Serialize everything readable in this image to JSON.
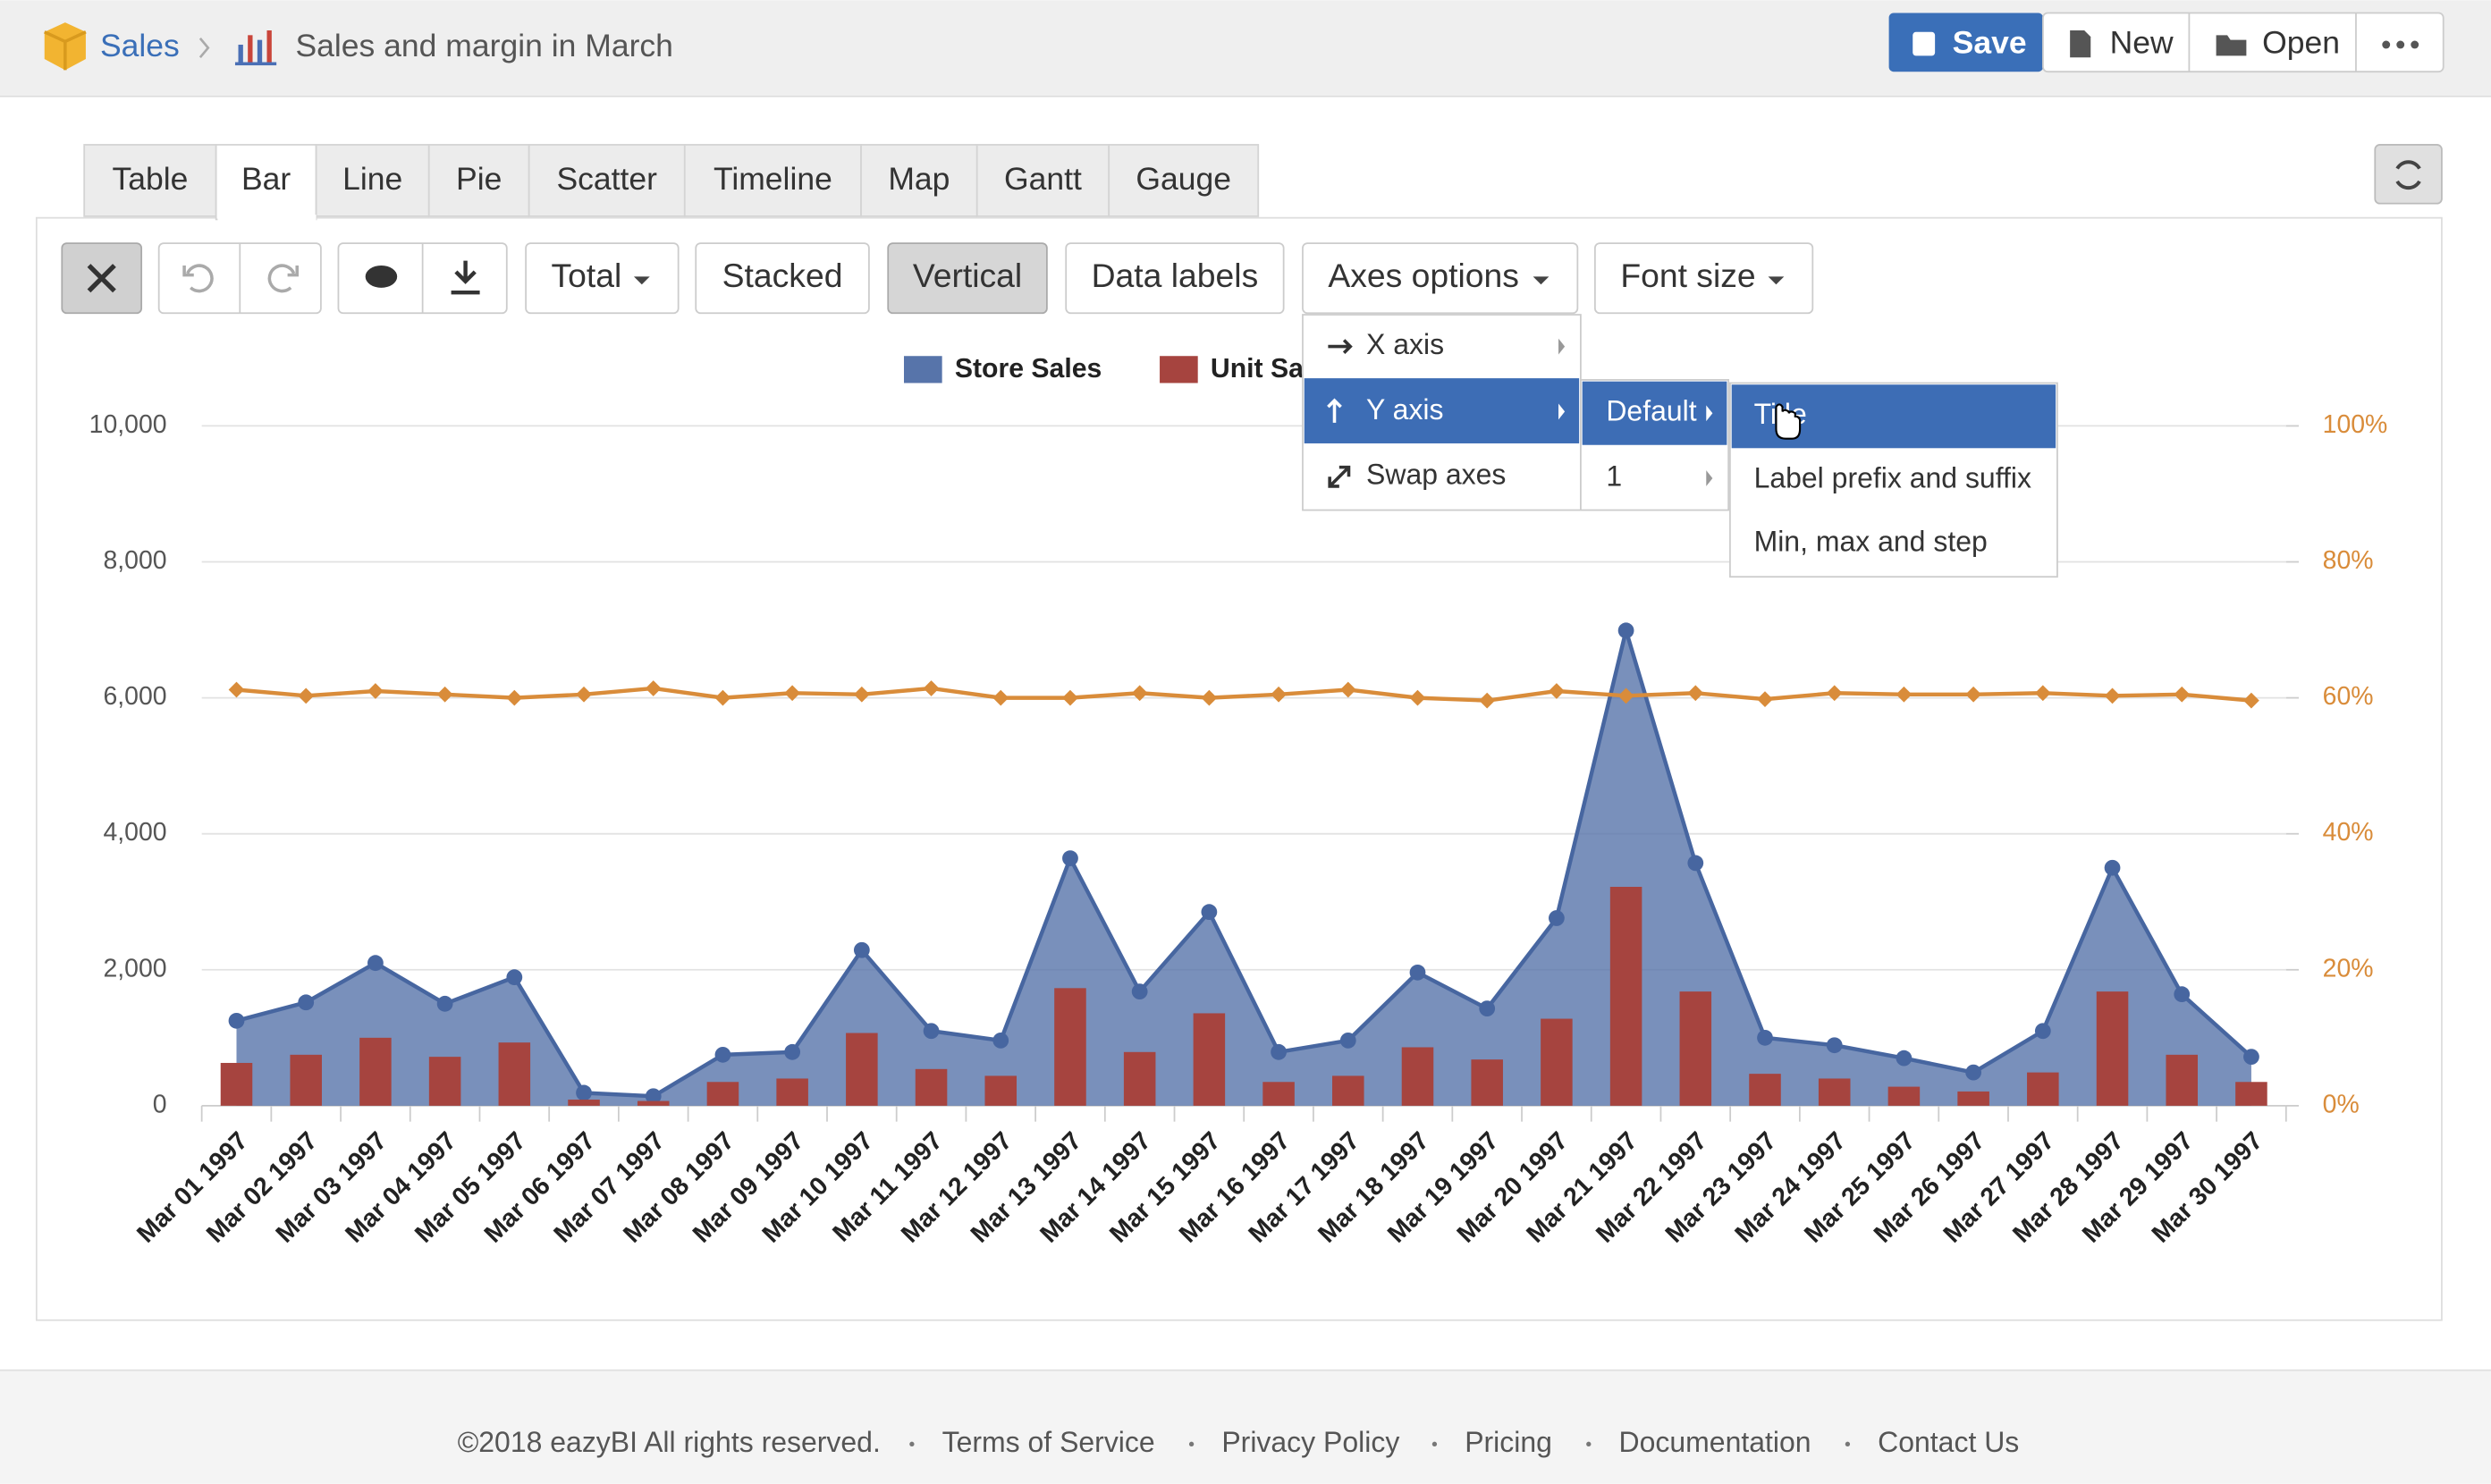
{
  "header": {
    "breadcrumb": [
      "Sales",
      "Sales and margin in March"
    ],
    "buttons": [
      "Save",
      "New",
      "Open"
    ]
  },
  "tabs": [
    "Table",
    "Bar",
    "Line",
    "Pie",
    "Scatter",
    "Timeline",
    "Map",
    "Gantt",
    "Gauge"
  ],
  "toolbar": [
    "Total",
    "Stacked",
    "Vertical",
    "Data labels",
    "Axes options",
    "Font size"
  ],
  "menu": {
    "items": [
      "X axis",
      "Y axis",
      "Swap axes"
    ],
    "submenu": [
      "Default",
      "1"
    ],
    "options": [
      "Title",
      "Label prefix and suffix",
      "Min, max and step"
    ]
  },
  "footer": [
    "©2018 eazyBI All rights reserved.",
    "Terms of Service",
    "Privacy Policy",
    "Pricing",
    "Documentation",
    "Contact Us"
  ],
  "chart_data": {
    "type": "combo",
    "categories": [
      "Mar 01 1997",
      "Mar 02 1997",
      "Mar 03 1997",
      "Mar 04 1997",
      "Mar 05 1997",
      "Mar 06 1997",
      "Mar 07 1997",
      "Mar 08 1997",
      "Mar 09 1997",
      "Mar 10 1997",
      "Mar 11 1997",
      "Mar 12 1997",
      "Mar 13 1997",
      "Mar 14 1997",
      "Mar 15 1997",
      "Mar 16 1997",
      "Mar 17 1997",
      "Mar 18 1997",
      "Mar 19 1997",
      "Mar 20 1997",
      "Mar 21 1997",
      "Mar 22 1997",
      "Mar 23 1997",
      "Mar 24 1997",
      "Mar 25 1997",
      "Mar 26 1997",
      "Mar 27 1997",
      "Mar 28 1997",
      "Mar 29 1997",
      "Mar 30 1997"
    ],
    "series": [
      {
        "name": "Store Sales",
        "type": "area",
        "color": "#5774aa",
        "values": [
          1250,
          1520,
          2100,
          1500,
          1890,
          190,
          140,
          750,
          790,
          2290,
          1100,
          960,
          3640,
          1680,
          2850,
          790,
          960,
          1960,
          1430,
          2760,
          6990,
          3570,
          1000,
          890,
          700,
          490,
          1100,
          3500,
          1640,
          720
        ]
      },
      {
        "name": "Unit Sales",
        "type": "bar",
        "color": "#a6443f",
        "values": [
          630,
          750,
          1000,
          720,
          930,
          90,
          70,
          350,
          400,
          1070,
          540,
          440,
          1730,
          790,
          1360,
          350,
          440,
          860,
          680,
          1280,
          3220,
          1680,
          470,
          400,
          280,
          210,
          490,
          1680,
          750,
          350
        ]
      },
      {
        "type": "line",
        "axis": "y2",
        "color": "#d98c3a",
        "values": [
          61.2,
          60.3,
          61.0,
          60.5,
          60.0,
          60.5,
          61.4,
          60.0,
          60.7,
          60.5,
          61.4,
          60.0,
          60.0,
          60.7,
          60.0,
          60.5,
          61.2,
          60.0,
          59.6,
          61.0,
          60.3,
          60.7,
          59.8,
          60.7,
          60.5,
          60.5,
          60.7,
          60.3,
          60.5,
          59.6
        ]
      }
    ],
    "ylim": [
      0,
      10000
    ],
    "yticks": [
      0,
      {
        "value": 2000,
        "label": "2,000"
      },
      {
        "value": 4000,
        "label": "4,000"
      },
      {
        "value": 6000,
        "label": "6,000"
      },
      {
        "value": 8000,
        "label": "8,000"
      },
      {
        "value": 10000,
        "label": "10,000"
      }
    ],
    "y2lim": [
      0,
      100
    ],
    "y2ticks": [
      {
        "value": 0,
        "label": "0%"
      },
      {
        "value": 20,
        "label": "20%"
      },
      {
        "value": 40,
        "label": "40%"
      },
      {
        "value": 60,
        "label": "60%"
      },
      {
        "value": 80,
        "label": "80%"
      },
      {
        "value": 100,
        "label": "100%"
      }
    ],
    "grid": true
  }
}
